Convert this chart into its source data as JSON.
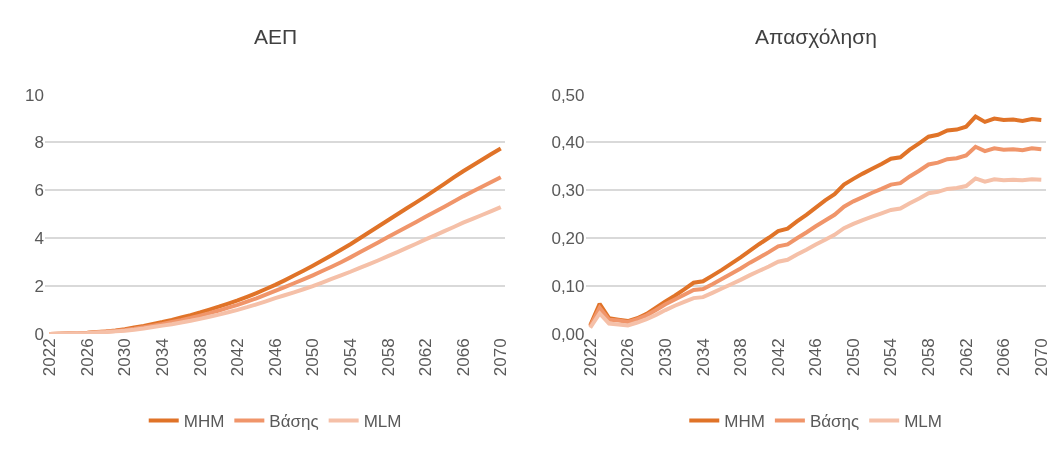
{
  "chart_data": [
    {
      "type": "line",
      "title": "ΑΕΠ",
      "categories": [
        "2022",
        null,
        null,
        null,
        "2026",
        null,
        null,
        null,
        "2030",
        null,
        null,
        null,
        "2034",
        null,
        null,
        null,
        "2038",
        null,
        null,
        null,
        "2042",
        null,
        null,
        null,
        "2046",
        null,
        null,
        null,
        "2050",
        null,
        null,
        null,
        "2054",
        null,
        null,
        null,
        "2058",
        null,
        null,
        null,
        "2062",
        null,
        null,
        null,
        "2066",
        null,
        null,
        null,
        "2070"
      ],
      "series": [
        {
          "name": "MHM",
          "color": "#e07328",
          "values": [
            0,
            0.01,
            0.02,
            0.03,
            0.05,
            0.08,
            0.11,
            0.15,
            0.2,
            0.27,
            0.34,
            0.42,
            0.5,
            0.59,
            0.69,
            0.79,
            0.9,
            1.02,
            1.14,
            1.27,
            1.4,
            1.55,
            1.71,
            1.88,
            2.05,
            2.24,
            2.44,
            2.64,
            2.85,
            3.07,
            3.29,
            3.52,
            3.75,
            4.0,
            4.25,
            4.5,
            4.75,
            5.0,
            5.25,
            5.5,
            5.75,
            6.01,
            6.27,
            6.54,
            6.8,
            7.04,
            7.28,
            7.52,
            7.75
          ]
        },
        {
          "name": "Βάσης",
          "color": "#f0956a",
          "values": [
            0,
            0.01,
            0.02,
            0.03,
            0.04,
            0.07,
            0.1,
            0.13,
            0.17,
            0.22,
            0.28,
            0.35,
            0.42,
            0.5,
            0.58,
            0.67,
            0.77,
            0.87,
            0.98,
            1.1,
            1.22,
            1.35,
            1.49,
            1.64,
            1.8,
            1.96,
            2.12,
            2.28,
            2.45,
            2.63,
            2.81,
            3.0,
            3.2,
            3.41,
            3.62,
            3.83,
            4.05,
            4.26,
            4.47,
            4.68,
            4.9,
            5.11,
            5.32,
            5.53,
            5.75,
            5.95,
            6.15,
            6.35,
            6.55
          ]
        },
        {
          "name": "MLM",
          "color": "#f5c0a8",
          "values": [
            0,
            0.01,
            0.02,
            0.03,
            0.04,
            0.06,
            0.08,
            0.11,
            0.14,
            0.18,
            0.23,
            0.29,
            0.35,
            0.41,
            0.48,
            0.55,
            0.63,
            0.72,
            0.81,
            0.91,
            1.01,
            1.12,
            1.24,
            1.36,
            1.5,
            1.62,
            1.74,
            1.87,
            2.0,
            2.15,
            2.3,
            2.45,
            2.6,
            2.76,
            2.92,
            3.08,
            3.25,
            3.42,
            3.6,
            3.77,
            3.95,
            4.12,
            4.3,
            4.47,
            4.65,
            4.81,
            4.97,
            5.13,
            5.3
          ]
        }
      ],
      "ylim": [
        0,
        10
      ],
      "yticks": [
        0,
        2,
        4,
        6,
        8,
        10
      ],
      "grid": "y",
      "legend": "bottom",
      "marker": "none",
      "line_style": "solid"
    },
    {
      "type": "line",
      "title": "Απασχόληση",
      "categories": [
        "2022",
        null,
        null,
        null,
        "2026",
        null,
        null,
        null,
        "2030",
        null,
        null,
        null,
        "2034",
        null,
        null,
        null,
        "2038",
        null,
        null,
        null,
        "2042",
        null,
        null,
        null,
        "2046",
        null,
        null,
        null,
        "2050",
        null,
        null,
        null,
        "2054",
        null,
        null,
        null,
        "2058",
        null,
        null,
        null,
        "2062",
        null,
        null,
        null,
        "2066",
        null,
        null,
        null,
        "2070"
      ],
      "series": [
        {
          "name": "MHM",
          "color": "#e07328",
          "values": [
            0.018,
            0.063,
            0.033,
            0.03,
            0.027,
            0.033,
            0.042,
            0.055,
            0.068,
            0.08,
            0.093,
            0.107,
            0.11,
            0.122,
            0.134,
            0.147,
            0.16,
            0.174,
            0.188,
            0.201,
            0.215,
            0.22,
            0.235,
            0.249,
            0.264,
            0.279,
            0.292,
            0.312,
            0.324,
            0.335,
            0.345,
            0.355,
            0.366,
            0.369,
            0.385,
            0.398,
            0.412,
            0.416,
            0.425,
            0.427,
            0.433,
            0.454,
            0.443,
            0.45,
            0.447,
            0.448,
            0.445,
            0.449,
            0.447
          ]
        },
        {
          "name": "Βάσης",
          "color": "#f0956a",
          "values": [
            0.016,
            0.055,
            0.03,
            0.028,
            0.025,
            0.031,
            0.039,
            0.05,
            0.062,
            0.072,
            0.082,
            0.092,
            0.094,
            0.104,
            0.115,
            0.126,
            0.137,
            0.149,
            0.16,
            0.171,
            0.183,
            0.187,
            0.2,
            0.212,
            0.225,
            0.237,
            0.249,
            0.266,
            0.277,
            0.286,
            0.295,
            0.303,
            0.312,
            0.315,
            0.329,
            0.341,
            0.354,
            0.358,
            0.365,
            0.367,
            0.373,
            0.391,
            0.382,
            0.388,
            0.385,
            0.386,
            0.384,
            0.388,
            0.386
          ]
        },
        {
          "name": "MLM",
          "color": "#f5c0a8",
          "values": [
            0.013,
            0.043,
            0.022,
            0.02,
            0.018,
            0.024,
            0.031,
            0.04,
            0.05,
            0.059,
            0.067,
            0.075,
            0.077,
            0.086,
            0.095,
            0.104,
            0.113,
            0.123,
            0.132,
            0.141,
            0.151,
            0.155,
            0.166,
            0.176,
            0.187,
            0.197,
            0.207,
            0.221,
            0.23,
            0.238,
            0.245,
            0.252,
            0.259,
            0.262,
            0.273,
            0.283,
            0.294,
            0.297,
            0.303,
            0.305,
            0.309,
            0.325,
            0.318,
            0.323,
            0.321,
            0.322,
            0.321,
            0.323,
            0.322
          ]
        }
      ],
      "ylim": [
        0,
        0.5
      ],
      "yticks": [
        {
          "value": 0,
          "label": "0,00"
        },
        {
          "value": 0.1,
          "label": "0,10"
        },
        {
          "value": 0.2,
          "label": "0,20"
        },
        {
          "value": 0.3,
          "label": "0,30"
        },
        {
          "value": 0.4,
          "label": "0,40"
        },
        {
          "value": 0.5,
          "label": "0,50"
        }
      ],
      "grid": "y",
      "legend": "bottom",
      "marker": "none",
      "line_style": "solid"
    }
  ]
}
